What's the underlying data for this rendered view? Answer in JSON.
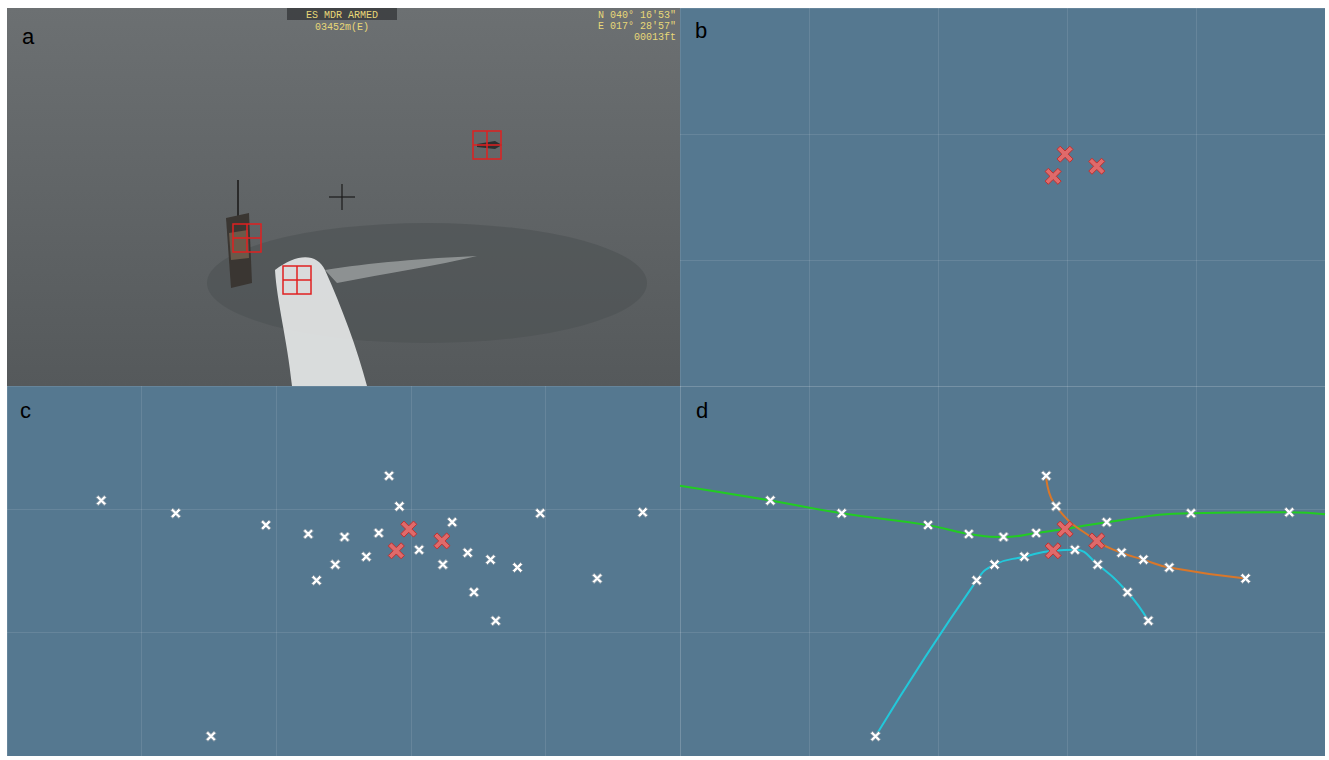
{
  "photo": {
    "panel": "a",
    "overlay_top": [
      "ES MDR ARMED",
      "03452m(E)"
    ],
    "overlay_right": [
      "N 040° 16'53\"",
      "E 017° 28'57\"",
      "00013ft"
    ]
  },
  "chart_data": [
    {
      "panel": "b",
      "type": "scatter",
      "xlim": [
        0,
        650
      ],
      "ylim": [
        0,
        375
      ],
      "xticks": [
        0,
        130,
        260,
        390,
        520,
        650
      ],
      "yticks": [
        0,
        125,
        250,
        375
      ],
      "grid": true,
      "tick_labels": false,
      "series": [
        {
          "type": "scatter",
          "color": "#e06a6a",
          "marker": "bold_x",
          "values": [
            [
              388,
              230
            ],
            [
              420,
              218
            ],
            [
              376,
              208
            ]
          ]
        }
      ]
    },
    {
      "panel": "c",
      "type": "scatter",
      "xlim": [
        0,
        650
      ],
      "ylim": [
        0,
        375
      ],
      "xticks": [
        0,
        130,
        260,
        390,
        520,
        650
      ],
      "yticks": [
        0,
        125,
        250,
        375
      ],
      "grid": true,
      "tick_labels": false,
      "series": [
        {
          "type": "scatter",
          "color": "#ffffff",
          "marker": "x",
          "values": [
            [
              91,
              259
            ],
            [
              163,
              246
            ],
            [
              250,
              234
            ],
            [
              291,
              225
            ],
            [
              326,
              222
            ],
            [
              359,
              226
            ],
            [
              369,
              284
            ],
            [
              379,
              253
            ],
            [
              398,
              209
            ],
            [
              430,
              237
            ],
            [
              445,
              206
            ],
            [
              467,
              199
            ],
            [
              493,
              191
            ],
            [
              421,
              194
            ],
            [
              347,
              202
            ],
            [
              317,
              194
            ],
            [
              299,
              178
            ],
            [
              451,
              166
            ],
            [
              472,
              137
            ],
            [
              515,
              246
            ],
            [
              570,
              180
            ],
            [
              614,
              247
            ],
            [
              197,
              20
            ]
          ]
        },
        {
          "type": "scatter",
          "color": "#e06a6a",
          "marker": "bold_x",
          "values": [
            [
              388,
              230
            ],
            [
              420,
              218
            ],
            [
              376,
              208
            ]
          ]
        }
      ]
    },
    {
      "panel": "d",
      "type": "scatter",
      "xlim": [
        0,
        650
      ],
      "ylim": [
        0,
        375
      ],
      "xticks": [
        0,
        130,
        260,
        390,
        520,
        650
      ],
      "yticks": [
        0,
        125,
        250,
        375
      ],
      "grid": true,
      "tick_labels": false,
      "series": [
        {
          "type": "line",
          "color": "#22cc22",
          "marker": "none",
          "line_style": "solid",
          "values": [
            [
              0,
              274
            ],
            [
              91,
              259
            ],
            [
              163,
              246
            ],
            [
              250,
              234
            ],
            [
              291,
              225
            ],
            [
              326,
              222
            ],
            [
              359,
              226
            ],
            [
              388,
              230
            ],
            [
              430,
              237
            ],
            [
              515,
              246
            ],
            [
              614,
              247
            ],
            [
              650,
              245
            ]
          ]
        },
        {
          "type": "line",
          "color": "#d9772a",
          "marker": "none",
          "line_style": "solid",
          "values": [
            [
              369,
              284
            ],
            [
              379,
              253
            ],
            [
              420,
              218
            ],
            [
              445,
              206
            ],
            [
              467,
              199
            ],
            [
              493,
              191
            ],
            [
              570,
              180
            ]
          ]
        },
        {
          "type": "line",
          "color": "#22c8da",
          "marker": "none",
          "line_style": "solid",
          "values": [
            [
              197,
              20
            ],
            [
              299,
              178
            ],
            [
              317,
              194
            ],
            [
              347,
              202
            ],
            [
              376,
              208
            ],
            [
              398,
              209
            ],
            [
              421,
              194
            ],
            [
              451,
              166
            ],
            [
              472,
              137
            ]
          ]
        },
        {
          "type": "scatter",
          "color": "#ffffff",
          "marker": "x",
          "values": [
            [
              91,
              259
            ],
            [
              163,
              246
            ],
            [
              250,
              234
            ],
            [
              291,
              225
            ],
            [
              326,
              222
            ],
            [
              359,
              226
            ],
            [
              369,
              284
            ],
            [
              379,
              253
            ],
            [
              398,
              209
            ],
            [
              430,
              237
            ],
            [
              445,
              206
            ],
            [
              467,
              199
            ],
            [
              493,
              191
            ],
            [
              421,
              194
            ],
            [
              347,
              202
            ],
            [
              317,
              194
            ],
            [
              299,
              178
            ],
            [
              451,
              166
            ],
            [
              472,
              137
            ],
            [
              515,
              246
            ],
            [
              570,
              180
            ],
            [
              614,
              247
            ],
            [
              197,
              20
            ]
          ]
        },
        {
          "type": "scatter",
          "color": "#e06a6a",
          "marker": "bold_x",
          "values": [
            [
              388,
              230
            ],
            [
              420,
              218
            ],
            [
              376,
              208
            ]
          ]
        }
      ]
    }
  ]
}
